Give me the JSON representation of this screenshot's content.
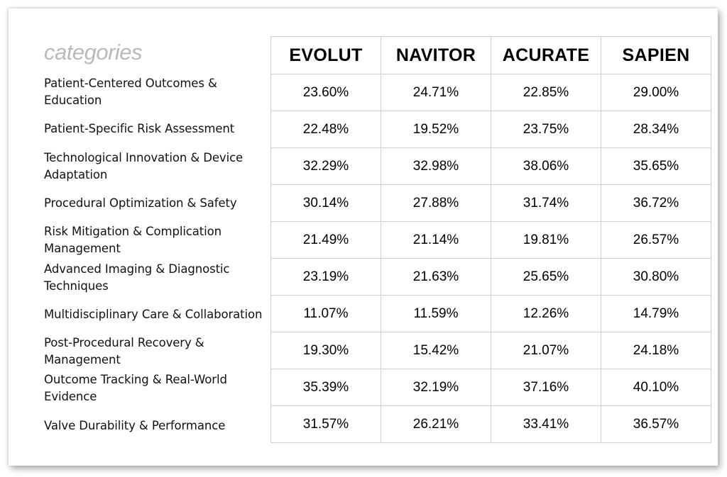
{
  "chart_data": {
    "type": "table",
    "header_label": "categories",
    "columns": [
      "EVOLUT",
      "NAVITOR",
      "ACURATE",
      "SAPIEN"
    ],
    "rows": [
      {
        "category": "Patient-Centered Outcomes & Education",
        "values": [
          "23.60%",
          "24.71%",
          "22.85%",
          "29.00%"
        ]
      },
      {
        "category": "Patient-Specific Risk Assessment",
        "values": [
          "22.48%",
          "19.52%",
          "23.75%",
          "28.34%"
        ]
      },
      {
        "category": "Technological Innovation & Device Adaptation",
        "values": [
          "32.29%",
          "32.98%",
          "38.06%",
          "35.65%"
        ]
      },
      {
        "category": "Procedural Optimization & Safety",
        "values": [
          "30.14%",
          "27.88%",
          "31.74%",
          "36.72%"
        ]
      },
      {
        "category": "Risk Mitigation & Complication Management",
        "values": [
          "21.49%",
          "21.14%",
          "19.81%",
          "26.57%"
        ]
      },
      {
        "category": "Advanced Imaging & Diagnostic Techniques",
        "values": [
          "23.19%",
          "21.63%",
          "25.65%",
          "30.80%"
        ]
      },
      {
        "category": "Multidisciplinary Care & Collaboration",
        "values": [
          "11.07%",
          "11.59%",
          "12.26%",
          "14.79%"
        ]
      },
      {
        "category": "Post-Procedural Recovery & Management",
        "values": [
          "19.30%",
          "15.42%",
          "21.07%",
          "24.18%"
        ]
      },
      {
        "category": "Outcome Tracking & Real-World Evidence",
        "values": [
          "35.39%",
          "32.19%",
          "37.16%",
          "40.10%"
        ]
      },
      {
        "category": "Valve Durability & Performance",
        "values": [
          "31.57%",
          "26.21%",
          "33.41%",
          "36.57%"
        ]
      }
    ]
  },
  "colors": {
    "header_label": "#b9b9b9",
    "grid_line": "#cfcfcf",
    "text": "#000000"
  }
}
